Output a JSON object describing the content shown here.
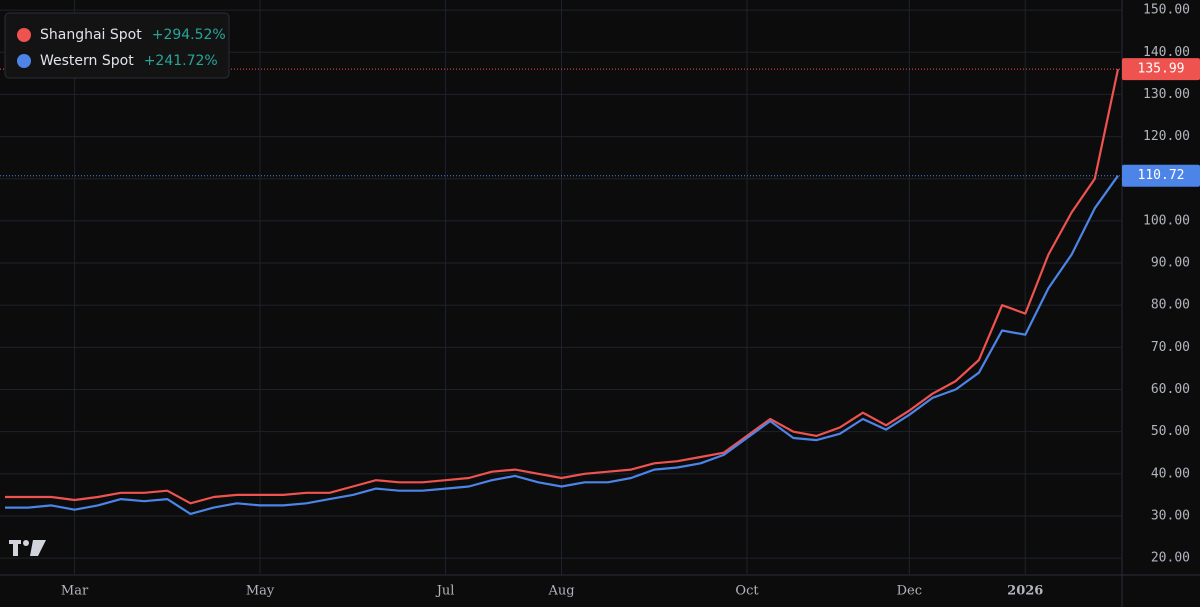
{
  "chart_data": {
    "type": "line",
    "categories": [
      null,
      null,
      null,
      "Mar",
      null,
      null,
      null,
      null,
      null,
      null,
      null,
      "May",
      null,
      null,
      null,
      null,
      null,
      null,
      null,
      "Jul",
      null,
      null,
      null,
      null,
      "Aug",
      null,
      null,
      null,
      null,
      null,
      null,
      null,
      "Oct",
      null,
      null,
      null,
      null,
      null,
      null,
      "Dec",
      null,
      null,
      null,
      null,
      "2026",
      null,
      null,
      null,
      null
    ],
    "series": [
      {
        "name": "Shanghai Spot",
        "change": "+294.52%",
        "color": "#ef5350",
        "values": [
          34.5,
          34.5,
          34.5,
          33.8,
          34.5,
          35.5,
          35.5,
          36,
          33,
          34.5,
          35,
          35,
          35,
          35.5,
          35.5,
          37,
          38.5,
          38,
          38,
          38.5,
          39,
          40.5,
          41,
          40,
          39,
          40,
          40.5,
          41,
          42.5,
          43,
          44,
          45,
          49,
          53,
          50,
          49,
          51,
          54.5,
          51.5,
          55,
          59,
          62,
          67,
          80,
          78,
          92,
          102,
          110,
          135.99
        ]
      },
      {
        "name": "Western Spot",
        "change": "+241.72%",
        "color": "#4d84e8",
        "values": [
          32,
          32,
          32.5,
          31.5,
          32.5,
          34,
          33.5,
          34,
          30.5,
          32,
          33,
          32.5,
          32.5,
          33,
          34,
          35,
          36.5,
          36,
          36,
          36.5,
          37,
          38.5,
          39.5,
          38,
          37,
          38,
          38,
          39,
          41,
          41.5,
          42.5,
          44.5,
          48.5,
          52.5,
          48.5,
          48,
          49.5,
          53,
          50.5,
          54,
          58,
          60,
          64,
          74,
          73,
          84,
          92,
          103,
          110.72
        ]
      }
    ],
    "ylim": [
      16,
      152.4
    ],
    "yticks": [
      {
        "value": 20,
        "label": "20.00"
      },
      {
        "value": 30,
        "label": "30.00"
      },
      {
        "value": 40,
        "label": "40.00"
      },
      {
        "value": 50,
        "label": "50.00"
      },
      {
        "value": 60,
        "label": "60.00"
      },
      {
        "value": 70,
        "label": "70.00"
      },
      {
        "value": 80,
        "label": "80.00"
      },
      {
        "value": 90,
        "label": "90.00"
      },
      {
        "value": 100,
        "label": "100.00"
      },
      {
        "value": 110,
        "label": "110.00"
      },
      {
        "value": 120,
        "label": "120.00"
      },
      {
        "value": 130,
        "label": "130.00"
      },
      {
        "value": 140,
        "label": "140.00"
      },
      {
        "value": 150,
        "label": "150.00"
      }
    ],
    "grid": true
  }
}
